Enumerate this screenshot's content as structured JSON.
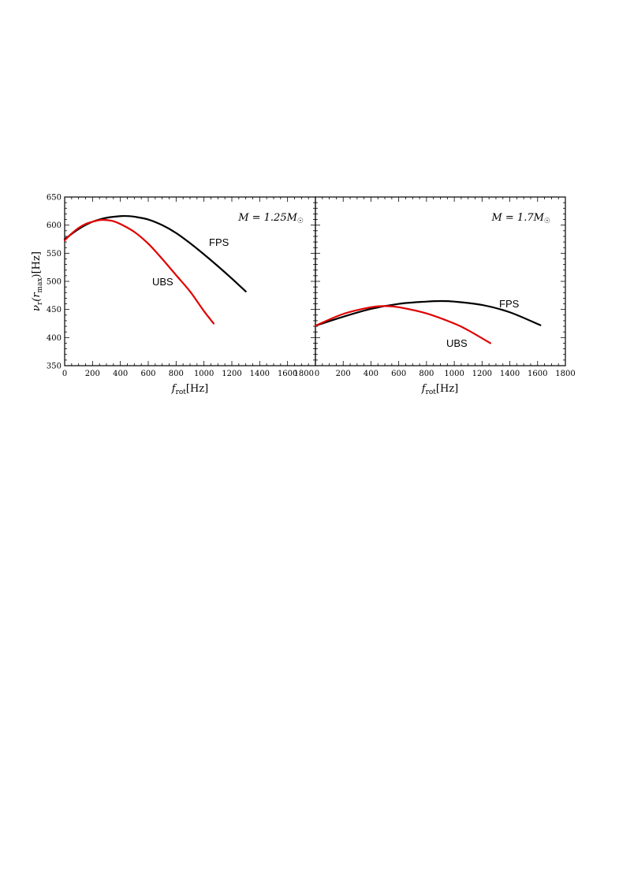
{
  "chart_data": [
    {
      "type": "line",
      "xlabel": "f_rot [Hz]",
      "ylabel": "ν_r(r_max) [Hz]",
      "xlim": [
        0,
        1800
      ],
      "ylim": [
        350,
        650
      ],
      "xticks": [
        "0",
        "200",
        "400",
        "600",
        "800",
        "1000",
        "1200",
        "1400",
        "1600",
        "1800"
      ],
      "yticks": [
        "350",
        "400",
        "450",
        "500",
        "550",
        "600",
        "650"
      ],
      "annotation": "M = 1.25M☉",
      "series": [
        {
          "name": "FPS",
          "color": "#000000",
          "x": [
            0,
            100,
            200,
            300,
            400,
            460,
            500,
            600,
            700,
            800,
            900,
            1000,
            1100,
            1200,
            1300
          ],
          "y": [
            575,
            593,
            606,
            613,
            616,
            616,
            615,
            610,
            600,
            586,
            568,
            548,
            527,
            505,
            482
          ]
        },
        {
          "name": "UBS",
          "color": "#e00000",
          "x": [
            0,
            50,
            100,
            150,
            200,
            250,
            300,
            350,
            400,
            500,
            600,
            700,
            800,
            900,
            1000,
            1070
          ],
          "y": [
            573,
            585,
            595,
            602,
            606,
            609,
            609,
            607,
            602,
            588,
            567,
            540,
            511,
            482,
            447,
            425
          ]
        }
      ]
    },
    {
      "type": "line",
      "xlabel": "f_rot [Hz]",
      "ylabel": "",
      "xlim": [
        0,
        1800
      ],
      "ylim": [
        350,
        650
      ],
      "xticks": [
        "0",
        "200",
        "400",
        "600",
        "800",
        "1000",
        "1200",
        "1400",
        "1600",
        "1800"
      ],
      "yticks": [],
      "annotation": "M = 1.7M☉",
      "series": [
        {
          "name": "FPS",
          "color": "#000000",
          "x": [
            0,
            200,
            400,
            600,
            800,
            900,
            1000,
            1200,
            1400,
            1620
          ],
          "y": [
            421,
            437,
            451,
            460,
            464,
            465,
            464,
            458,
            445,
            422
          ]
        },
        {
          "name": "UBS",
          "color": "#e00000",
          "x": [
            0,
            200,
            400,
            500,
            600,
            800,
            1000,
            1100,
            1260
          ],
          "y": [
            421,
            442,
            454,
            456,
            454,
            443,
            425,
            413,
            390
          ]
        }
      ]
    }
  ],
  "labels": {
    "p1_fps": "FPS",
    "p1_ubs": "UBS",
    "p2_fps": "FPS",
    "p2_ubs": "UBS",
    "x_main": "f",
    "x_sub": "rot",
    "x_unit": "[Hz]",
    "y_main": "ν",
    "y_sub_r": "r",
    "y_mid": "(r",
    "y_sub_max": "max",
    "y_close": ")",
    "y_unit": "[Hz]",
    "p1_mass_prefix": "M = 1.25M",
    "p2_mass_prefix": "M = 1.7M",
    "sun_symbol": "☉"
  }
}
